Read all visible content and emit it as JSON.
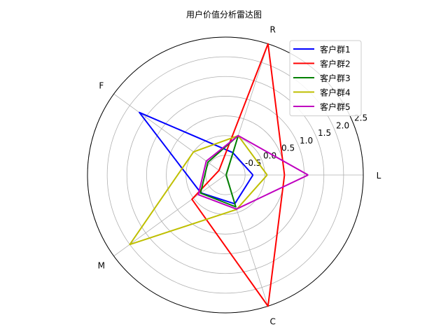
{
  "chart_data": {
    "type": "radar",
    "title": "用户价值分析雷达图",
    "axes": [
      "L",
      "R",
      "F",
      "M",
      "C"
    ],
    "r_ticks": [
      "-0.5",
      "0.0",
      "0.5",
      "1.0",
      "1.5",
      "2.0",
      "2.5"
    ],
    "r_tick_values": [
      -0.5,
      0.0,
      0.5,
      1.0,
      1.5,
      2.0,
      2.5
    ],
    "rlim": [
      -1.0,
      2.5
    ],
    "grid": true,
    "legend_position": "top-right",
    "series": [
      {
        "name": "客户群1",
        "color": "#0000ff",
        "values": [
          -0.3,
          -0.4,
          1.7,
          -0.23,
          -0.23
        ]
      },
      {
        "name": "客户群2",
        "color": "#ff0000",
        "values": [
          0.5,
          2.5,
          -0.8,
          0.05,
          2.5
        ]
      },
      {
        "name": "客户群3",
        "color": "#008000",
        "values": [
          -0.98,
          0.05,
          -0.45,
          -0.22,
          -0.15
        ]
      },
      {
        "name": "客户群4",
        "color": "#bfbf00",
        "values": [
          0.06,
          0.05,
          0.0,
          2.0,
          -0.08
        ]
      },
      {
        "name": "客户群5",
        "color": "#bf00bf",
        "values": [
          1.1,
          0.05,
          -0.4,
          -0.15,
          -0.09
        ]
      }
    ]
  }
}
